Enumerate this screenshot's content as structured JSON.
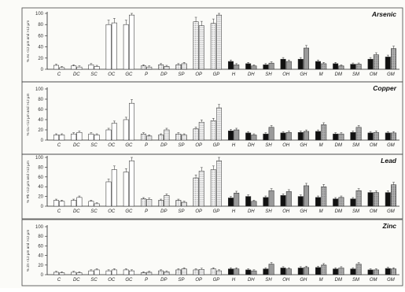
{
  "chart_data": [
    {
      "type": "bar",
      "title": "Arsenic",
      "ylabel": "% As <12 µm and >12 µm",
      "ylim": [
        0,
        100
      ],
      "yticks": [
        0,
        20,
        40,
        60,
        80,
        100
      ],
      "categories": [
        "C",
        "DC",
        "SC",
        "OC",
        "GC",
        "P",
        "DP",
        "SP",
        "OP",
        "GP",
        "H",
        "DH",
        "SH",
        "OH",
        "GH",
        "M",
        "DM",
        "SM",
        "OM",
        "GM"
      ],
      "series": [
        {
          "values": [
            7,
            6,
            8,
            80,
            80,
            6,
            8,
            8,
            85,
            82,
            14,
            10,
            8,
            18,
            18,
            14,
            10,
            9,
            18,
            22
          ]
        },
        {
          "values": [
            3,
            4,
            5,
            83,
            97,
            4,
            5,
            10,
            78,
            97,
            8,
            6,
            11,
            14,
            38,
            10,
            6,
            9,
            26,
            37
          ]
        }
      ]
    },
    {
      "type": "bar",
      "title": "Copper",
      "ylabel": "% Cu <12 µm and >12 µm",
      "ylim": [
        0,
        100
      ],
      "yticks": [
        0,
        20,
        40,
        60,
        80,
        100
      ],
      "categories": [
        "C",
        "DC",
        "SC",
        "OC",
        "GC",
        "P",
        "DP",
        "SP",
        "OP",
        "GP",
        "H",
        "DH",
        "SH",
        "OH",
        "GH",
        "M",
        "DM",
        "SM",
        "OM",
        "GM"
      ],
      "series": [
        {
          "values": [
            10,
            12,
            12,
            20,
            40,
            12,
            10,
            12,
            22,
            38,
            18,
            14,
            12,
            14,
            15,
            17,
            12,
            15,
            14,
            14
          ]
        },
        {
          "values": [
            10,
            15,
            10,
            33,
            72,
            8,
            20,
            10,
            35,
            63,
            20,
            10,
            25,
            15,
            17,
            30,
            12,
            25,
            15,
            14
          ]
        }
      ]
    },
    {
      "type": "bar",
      "title": "Lead",
      "ylabel": "% Pb <12 µm and >12 µm",
      "ylim": [
        0,
        100
      ],
      "yticks": [
        0,
        20,
        40,
        60,
        80,
        100
      ],
      "categories": [
        "C",
        "DC",
        "SC",
        "OC",
        "GC",
        "P",
        "DP",
        "SP",
        "OP",
        "GP",
        "H",
        "DH",
        "SH",
        "OH",
        "GH",
        "M",
        "DM",
        "SM",
        "OM",
        "GM"
      ],
      "series": [
        {
          "values": [
            12,
            12,
            10,
            50,
            70,
            15,
            12,
            12,
            58,
            75,
            17,
            20,
            18,
            22,
            20,
            18,
            15,
            15,
            28,
            28
          ]
        },
        {
          "values": [
            10,
            18,
            5,
            75,
            93,
            14,
            22,
            8,
            72,
            93,
            27,
            10,
            32,
            30,
            42,
            40,
            18,
            32,
            28,
            44
          ]
        }
      ]
    },
    {
      "type": "bar",
      "title": "Zinc",
      "ylabel": "% Zn <12 µm and >12 µm",
      "ylim": [
        0,
        100
      ],
      "yticks": [
        0,
        20,
        40,
        60,
        80,
        100
      ],
      "categories": [
        "C",
        "DC",
        "SC",
        "OC",
        "GC",
        "P",
        "DP",
        "SP",
        "OP",
        "GP",
        "H",
        "DH",
        "SH",
        "OH",
        "GH",
        "M",
        "DM",
        "SM",
        "OM",
        "GM"
      ],
      "series": [
        {
          "values": [
            5,
            5,
            8,
            8,
            10,
            4,
            8,
            10,
            10,
            12,
            12,
            10,
            12,
            14,
            14,
            15,
            12,
            12,
            10,
            13
          ]
        },
        {
          "values": [
            4,
            4,
            10,
            10,
            8,
            5,
            6,
            12,
            11,
            8,
            12,
            8,
            22,
            12,
            15,
            20,
            14,
            22,
            10,
            12
          ]
        }
      ]
    }
  ],
  "colors": {
    "hollow": "#ffffff",
    "dotted": "#d8d8d8",
    "black": "#111111",
    "grey": "#9a9a9a",
    "axis": "#222222",
    "frame": "#444444"
  }
}
